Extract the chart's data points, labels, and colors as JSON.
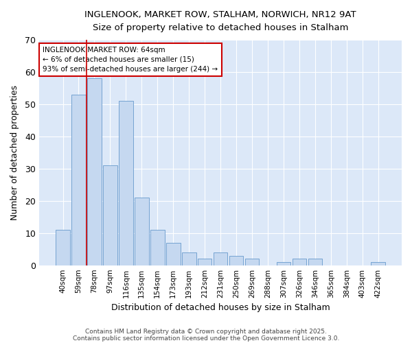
{
  "title1": "INGLENOOK, MARKET ROW, STALHAM, NORWICH, NR12 9AT",
  "title2": "Size of property relative to detached houses in Stalham",
  "xlabel": "Distribution of detached houses by size in Stalham",
  "ylabel": "Number of detached properties",
  "bar_labels": [
    "40sqm",
    "59sqm",
    "78sqm",
    "97sqm",
    "116sqm",
    "135sqm",
    "154sqm",
    "173sqm",
    "193sqm",
    "212sqm",
    "231sqm",
    "250sqm",
    "269sqm",
    "288sqm",
    "307sqm",
    "326sqm",
    "346sqm",
    "365sqm",
    "384sqm",
    "403sqm",
    "422sqm"
  ],
  "bar_values": [
    11,
    53,
    58,
    31,
    51,
    21,
    11,
    7,
    4,
    2,
    4,
    3,
    2,
    0,
    1,
    2,
    2,
    0,
    0,
    0,
    1
  ],
  "bar_color": "#c5d8f0",
  "bar_edge_color": "#6699cc",
  "annotation_text": "INGLENOOK MARKET ROW: 64sqm\n← 6% of detached houses are smaller (15)\n93% of semi-detached houses are larger (244) →",
  "annotation_box_color": "#ffffff",
  "annotation_box_edge": "#cc0000",
  "redline_x": 1.5,
  "ylim": [
    0,
    70
  ],
  "yticks": [
    0,
    10,
    20,
    30,
    40,
    50,
    60,
    70
  ],
  "bg_color": "#ffffff",
  "plot_bg": "#dce8f8",
  "footer1": "Contains HM Land Registry data © Crown copyright and database right 2025.",
  "footer2": "Contains public sector information licensed under the Open Government Licence 3.0."
}
